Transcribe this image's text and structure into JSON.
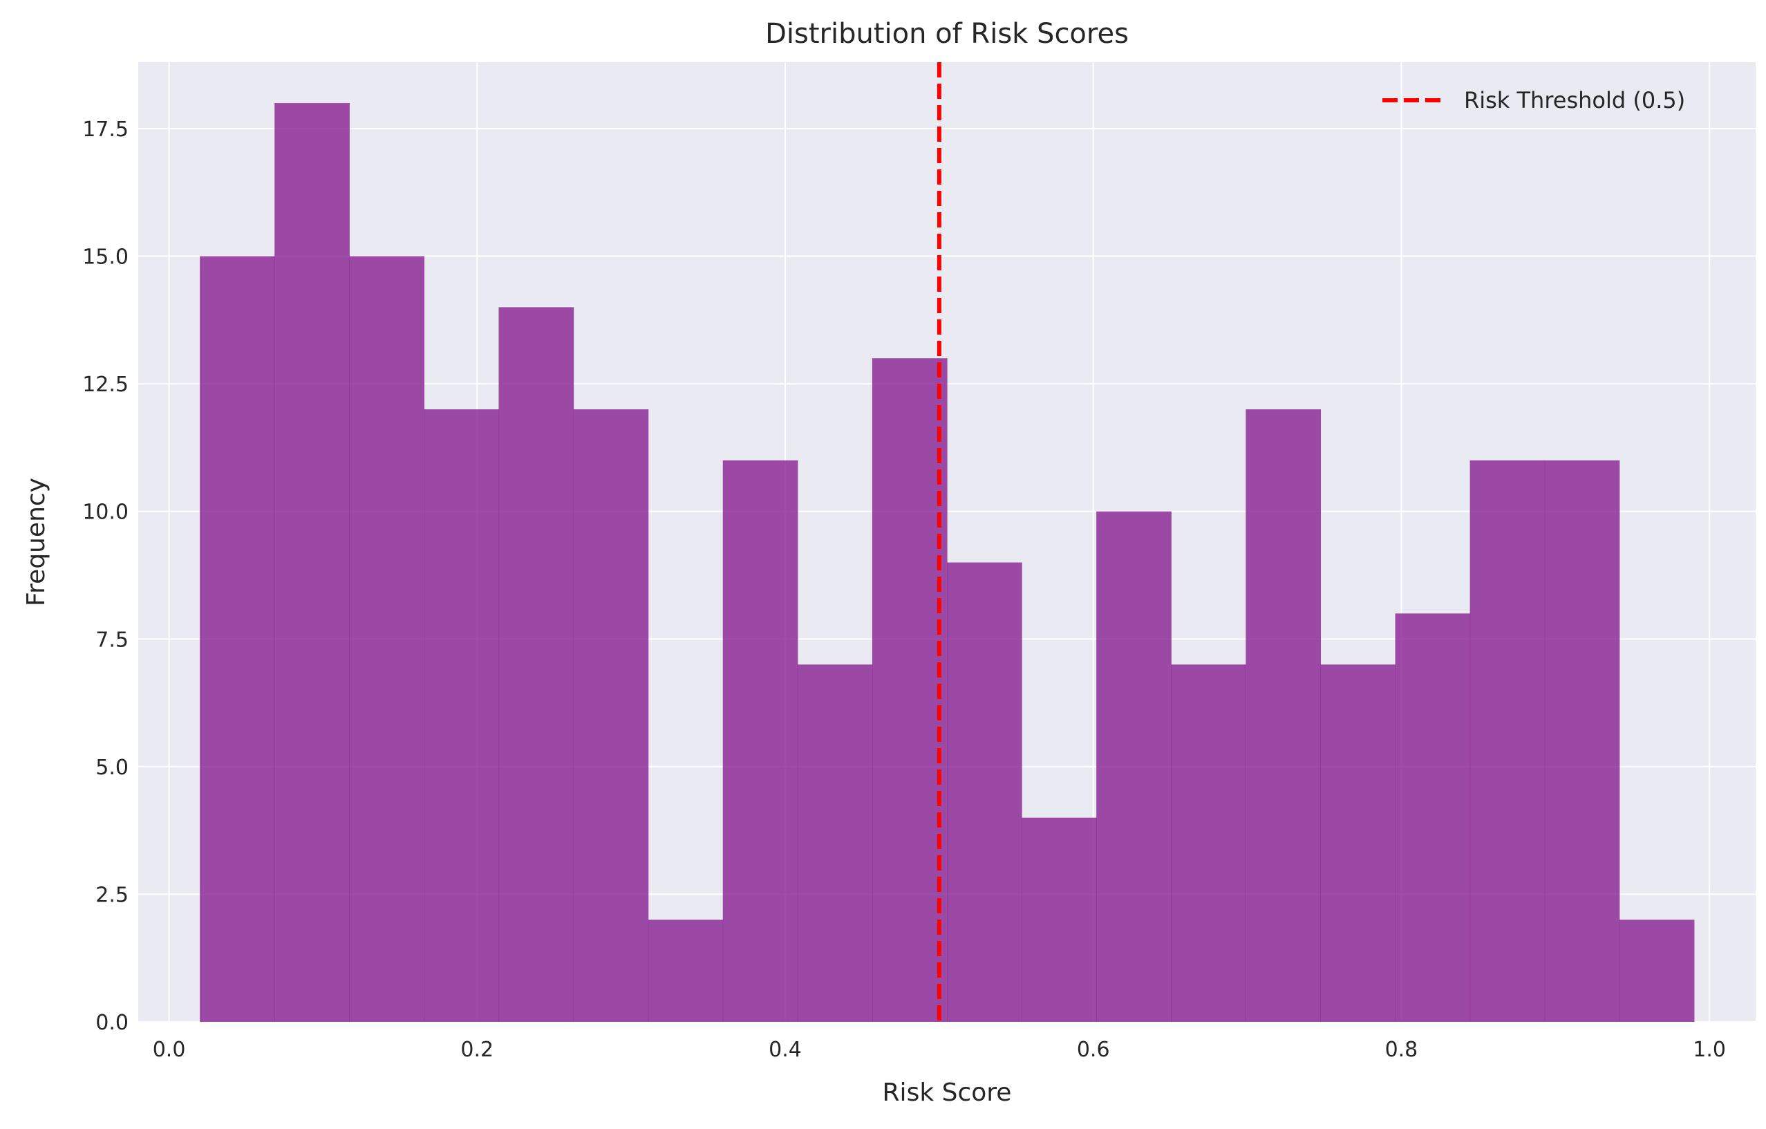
{
  "chart_data": {
    "type": "bar",
    "title": "Distribution of Risk Scores",
    "xlabel": "Risk Score",
    "ylabel": "Frequency",
    "xlim": [
      -0.02,
      1.03
    ],
    "ylim": [
      0,
      18.8
    ],
    "x_ticks": [
      0.0,
      0.2,
      0.4,
      0.6,
      0.8,
      1.0
    ],
    "x_tick_labels": [
      "0.0",
      "0.2",
      "0.4",
      "0.6",
      "0.8",
      "1.0"
    ],
    "y_ticks": [
      0.0,
      2.5,
      5.0,
      7.5,
      10.0,
      12.5,
      15.0,
      17.5
    ],
    "y_tick_labels": [
      "0.0",
      "2.5",
      "5.0",
      "7.5",
      "10.0",
      "12.5",
      "15.0",
      "17.5"
    ],
    "grid": true,
    "bins": {
      "edges": [
        0.02,
        0.0685,
        0.117,
        0.1655,
        0.214,
        0.2625,
        0.311,
        0.3595,
        0.408,
        0.4565,
        0.505,
        0.5535,
        0.602,
        0.6505,
        0.699,
        0.7475,
        0.796,
        0.8445,
        0.893,
        0.9415,
        0.99
      ],
      "counts": [
        15,
        18,
        15,
        12,
        14,
        12,
        2,
        11,
        7,
        13,
        9,
        4,
        10,
        7,
        12,
        7,
        8,
        11,
        11,
        2
      ],
      "color": "#8e2b98",
      "opacity": 0.85
    },
    "threshold": {
      "x": 0.5,
      "label": "Risk Threshold (0.5)",
      "color": "#ff0000",
      "style": "dashed"
    },
    "legend_position": "top-right",
    "background_color": "#eaeaf2",
    "grid_color": "#ffffff"
  }
}
